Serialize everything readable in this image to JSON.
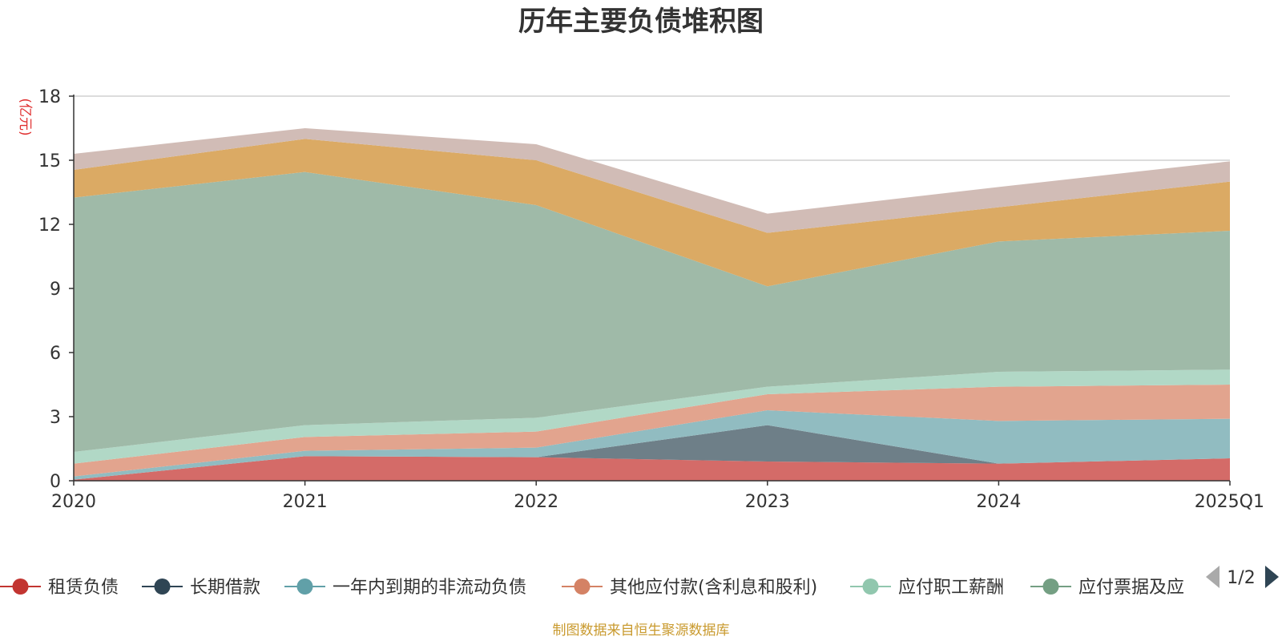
{
  "chart_data": {
    "type": "area",
    "stacked": true,
    "title": "历年主要负债堆积图",
    "unit": "(亿元)",
    "categories": [
      "2020",
      "2021",
      "2022",
      "2023",
      "2024",
      "2025Q1"
    ],
    "ylim": [
      0,
      18
    ],
    "yticks": [
      0,
      3,
      6,
      9,
      12,
      15,
      18
    ],
    "grid": true,
    "legend_position": "bottom",
    "series": [
      {
        "name": "租赁负债",
        "color": "#c23531",
        "fill": "#d46b68",
        "values": [
          0.05,
          1.15,
          1.1,
          0.9,
          0.8,
          1.05
        ]
      },
      {
        "name": "长期借款",
        "color": "#2f4554",
        "fill": "#6e7f88",
        "values": [
          0.0,
          0.0,
          0.0,
          1.7,
          0.0,
          0.0
        ]
      },
      {
        "name": "一年内到期的非流动负债",
        "color": "#61a0a8",
        "fill": "#91bcc1",
        "values": [
          0.15,
          0.25,
          0.45,
          0.7,
          2.0,
          1.85
        ]
      },
      {
        "name": "其他应付款(含利息和股利)",
        "color": "#d48265",
        "fill": "#e2a48e",
        "values": [
          0.6,
          0.65,
          0.75,
          0.75,
          1.6,
          1.6
        ]
      },
      {
        "name": "应付职工薪酬",
        "color": "#91c7ae",
        "fill": "#b1d8c6",
        "values": [
          0.55,
          0.55,
          0.65,
          0.35,
          0.7,
          0.7
        ]
      },
      {
        "name": "应付票据及应付账款",
        "color": "#749f83",
        "fill": "#9fbaa8",
        "values": [
          11.9,
          11.85,
          9.95,
          4.7,
          6.1,
          6.5
        ]
      },
      {
        "name": "",
        "color": "#ca8622",
        "fill": "#dbaa64",
        "values": [
          1.3,
          1.55,
          2.1,
          2.5,
          1.6,
          2.3
        ]
      },
      {
        "name": "",
        "color": "#bda29a",
        "fill": "#d1bcb6",
        "values": [
          0.75,
          0.5,
          0.75,
          0.9,
          0.95,
          0.95
        ]
      }
    ]
  },
  "legend": {
    "items": [
      {
        "label": "租赁负债",
        "color": "#c23531"
      },
      {
        "label": "长期借款",
        "color": "#2f4554"
      },
      {
        "label": "一年内到期的非流动负债",
        "color": "#61a0a8"
      },
      {
        "label": "其他应付款(含利息和股利)",
        "color": "#d48265"
      },
      {
        "label": "应付职工薪酬",
        "color": "#91c7ae"
      },
      {
        "label": "应付票据及应",
        "color": "#749f83"
      }
    ],
    "page_indicator": "1/2",
    "prev_icon": "triangle-left-icon",
    "next_icon": "triangle-right-icon"
  },
  "footer": {
    "source": "制图数据来自恒生聚源数据库"
  }
}
